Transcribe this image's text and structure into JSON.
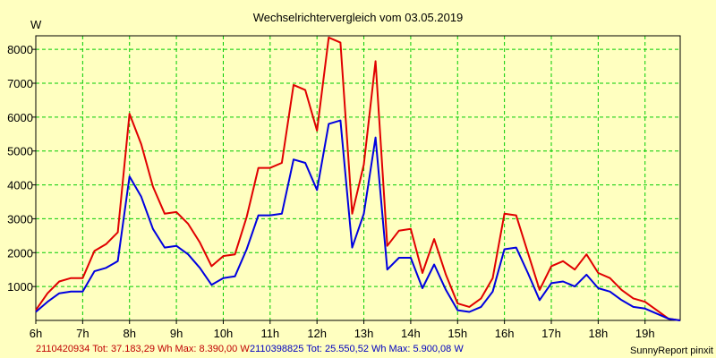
{
  "chart_data": {
    "type": "line",
    "title": "Wechselrichtervergleich vom 03.05.2019",
    "ylabel": "W",
    "xlabel": "",
    "ylim": [
      0,
      8400
    ],
    "xlim": [
      6,
      19.75
    ],
    "yticks": [
      1000,
      2000,
      3000,
      4000,
      5000,
      6000,
      7000,
      8000
    ],
    "yticklabels": [
      "1000",
      "2000",
      "3000",
      "4000",
      "5000",
      "6000",
      "7000",
      "8000"
    ],
    "xticks": [
      6,
      7,
      8,
      9,
      10,
      11,
      12,
      13,
      14,
      15,
      16,
      17,
      18,
      19
    ],
    "xticklabels": [
      "6h",
      "7h",
      "8h",
      "9h",
      "10h",
      "11h",
      "12h",
      "13h",
      "14h",
      "15h",
      "16h",
      "17h",
      "18h",
      "19h"
    ],
    "grid": true,
    "x": [
      6.0,
      6.25,
      6.5,
      6.75,
      7.0,
      7.25,
      7.5,
      7.75,
      8.0,
      8.25,
      8.5,
      8.75,
      9.0,
      9.25,
      9.5,
      9.75,
      10.0,
      10.25,
      10.5,
      10.75,
      11.0,
      11.25,
      11.5,
      11.75,
      12.0,
      12.25,
      12.5,
      12.75,
      13.0,
      13.25,
      13.5,
      13.75,
      14.0,
      14.25,
      14.5,
      14.75,
      15.0,
      15.25,
      15.5,
      15.75,
      16.0,
      16.25,
      16.5,
      16.75,
      17.0,
      17.25,
      17.5,
      17.75,
      18.0,
      18.25,
      18.5,
      18.75,
      19.0,
      19.25,
      19.5,
      19.75
    ],
    "series": [
      {
        "name": "2110420934",
        "color": "#e00000",
        "values": [
          300,
          800,
          1150,
          1250,
          1250,
          2050,
          2250,
          2600,
          6100,
          5200,
          3950,
          3150,
          3200,
          2850,
          2300,
          1600,
          1900,
          1950,
          3050,
          4500,
          4500,
          4650,
          6950,
          6800,
          5600,
          8350,
          8200,
          3150,
          4600,
          7650,
          2200,
          2650,
          2700,
          1400,
          2400,
          1350,
          500,
          400,
          650,
          1250,
          3150,
          3100,
          2000,
          900,
          1600,
          1750,
          1500,
          1950,
          1400,
          1250,
          900,
          650,
          550,
          300,
          50,
          0
        ]
      },
      {
        "name": "2110398825",
        "color": "#0000e0",
        "values": [
          250,
          550,
          800,
          850,
          850,
          1450,
          1550,
          1750,
          4250,
          3650,
          2700,
          2150,
          2200,
          1950,
          1550,
          1050,
          1250,
          1300,
          2100,
          3100,
          3100,
          3150,
          4750,
          4650,
          3850,
          5800,
          5900,
          2150,
          3150,
          5400,
          1500,
          1850,
          1850,
          950,
          1650,
          900,
          300,
          250,
          400,
          850,
          2100,
          2150,
          1400,
          600,
          1100,
          1150,
          1000,
          1350,
          950,
          850,
          600,
          400,
          350,
          200,
          50,
          0
        ]
      }
    ]
  },
  "footer": {
    "series1_text": "2110420934 Tot: 37.183,29 Wh Max: 8.390,00 W",
    "series2_text": "2110398825 Tot: 25.550,52 Wh Max: 5.900,08 W",
    "credit": "SunnyReport pinxit"
  },
  "colors": {
    "background": "#ffffc0",
    "grid": "#00cc00",
    "axis": "#000000"
  }
}
